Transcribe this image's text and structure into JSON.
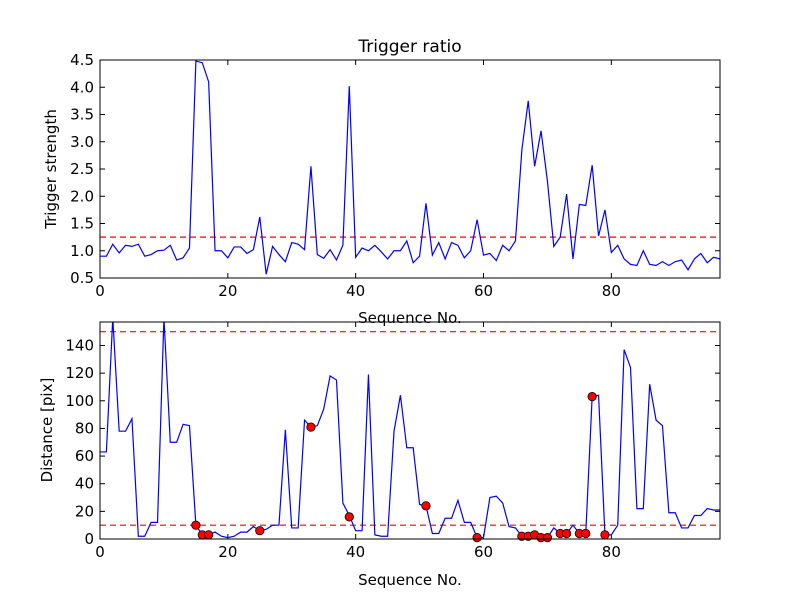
{
  "chart_data": [
    {
      "type": "line",
      "title": "Trigger ratio",
      "xlabel": "Sequence No.",
      "ylabel": "Trigger strength",
      "xlim": [
        0,
        97
      ],
      "ylim": [
        0.5,
        4.5
      ],
      "xticks": [
        "0",
        "20",
        "40",
        "60",
        "80"
      ],
      "yticks": [
        "0.5",
        "1.0",
        "1.5",
        "2.0",
        "2.5",
        "3.0",
        "3.5",
        "4.0",
        "4.5"
      ],
      "grid": false,
      "legend": "none",
      "colors": {
        "line": "#0000ff",
        "threshold": "#ff0000"
      },
      "threshold": 1.25,
      "x": [
        0,
        1,
        2,
        3,
        4,
        5,
        6,
        7,
        8,
        9,
        10,
        11,
        12,
        13,
        14,
        15,
        16,
        17,
        18,
        19,
        20,
        21,
        22,
        23,
        24,
        25,
        26,
        27,
        28,
        29,
        30,
        31,
        32,
        33,
        34,
        35,
        36,
        37,
        38,
        39,
        40,
        41,
        42,
        43,
        44,
        45,
        46,
        47,
        48,
        49,
        50,
        51,
        52,
        53,
        54,
        55,
        56,
        57,
        58,
        59,
        60,
        61,
        62,
        63,
        64,
        65,
        66,
        67,
        68,
        69,
        70,
        71,
        72,
        73,
        74,
        75,
        76,
        77,
        78,
        79,
        80,
        81,
        82,
        83,
        84,
        85,
        86,
        87,
        88,
        89,
        90,
        91,
        92,
        93,
        94,
        95,
        96,
        97
      ],
      "y": [
        0.9,
        0.9,
        1.12,
        0.96,
        1.1,
        1.08,
        1.12,
        0.9,
        0.93,
        1.0,
        1.01,
        1.1,
        0.83,
        0.87,
        1.05,
        4.48,
        4.45,
        4.1,
        1.0,
        1.0,
        0.87,
        1.07,
        1.07,
        0.95,
        1.02,
        1.62,
        0.57,
        1.08,
        0.93,
        0.8,
        1.15,
        1.12,
        1.02,
        2.55,
        0.93,
        0.86,
        1.02,
        0.83,
        1.1,
        4.02,
        0.88,
        1.05,
        1.0,
        1.1,
        0.98,
        0.85,
        1.0,
        1.0,
        1.18,
        0.78,
        0.9,
        1.87,
        0.92,
        1.15,
        0.85,
        1.15,
        1.1,
        0.87,
        1.0,
        1.57,
        0.92,
        0.95,
        0.82,
        1.1,
        1.0,
        1.18,
        2.85,
        3.75,
        2.55,
        3.2,
        2.28,
        1.08,
        1.25,
        2.04,
        0.85,
        1.85,
        1.83,
        2.57,
        1.27,
        1.75,
        0.97,
        1.1,
        0.85,
        0.75,
        0.73,
        1.0,
        0.75,
        0.73,
        0.8,
        0.73,
        0.8,
        0.83,
        0.65,
        0.85,
        0.95,
        0.78,
        0.88,
        0.85
      ]
    },
    {
      "type": "line",
      "xlabel": "Sequence No.",
      "ylabel": "Distance [pix]",
      "xlim": [
        0,
        97
      ],
      "ylim": [
        0,
        157
      ],
      "xticks": [
        "0",
        "20",
        "40",
        "60",
        "80"
      ],
      "yticks": [
        "0",
        "20",
        "40",
        "60",
        "80",
        "100",
        "120",
        "140"
      ],
      "grid": false,
      "legend": "none",
      "colors": {
        "line": "#0000ff",
        "threshold": "#ff0000",
        "marker": "#ff0000"
      },
      "thresholds": [
        150,
        10
      ],
      "x": [
        0,
        1,
        2,
        3,
        4,
        5,
        6,
        7,
        8,
        9,
        10,
        11,
        12,
        13,
        14,
        15,
        16,
        17,
        18,
        19,
        20,
        21,
        22,
        23,
        24,
        25,
        26,
        27,
        28,
        29,
        30,
        31,
        32,
        33,
        34,
        35,
        36,
        37,
        38,
        39,
        40,
        41,
        42,
        43,
        44,
        45,
        46,
        47,
        48,
        49,
        50,
        51,
        52,
        53,
        54,
        55,
        56,
        57,
        58,
        59,
        60,
        61,
        62,
        63,
        64,
        65,
        66,
        67,
        68,
        69,
        70,
        71,
        72,
        73,
        74,
        75,
        76,
        77,
        78,
        79,
        80,
        81,
        82,
        83,
        84,
        85,
        86,
        87,
        88,
        89,
        90,
        91,
        92,
        93,
        94,
        95,
        96,
        97
      ],
      "y": [
        63,
        63,
        160,
        78,
        78,
        87,
        2,
        2,
        12,
        12,
        160,
        70,
        70,
        83,
        82,
        10,
        3,
        3,
        5,
        2,
        1,
        2,
        5,
        5,
        9,
        6,
        7,
        10,
        10,
        79,
        8,
        8,
        86,
        81,
        82,
        94,
        118,
        115,
        26,
        17,
        6,
        6,
        119,
        3,
        2,
        2,
        78,
        104,
        66,
        66,
        25,
        24,
        4,
        4,
        15,
        15,
        28,
        12,
        12,
        1,
        1,
        30,
        31,
        26,
        9,
        8,
        2,
        2,
        4,
        2,
        1,
        8,
        4,
        4,
        10,
        4,
        4,
        103,
        104,
        3,
        3,
        10,
        137,
        124,
        22,
        22,
        112,
        86,
        82,
        19,
        19,
        8,
        8,
        17,
        17,
        22,
        21,
        21
      ],
      "markers": [
        {
          "x": 15,
          "y": 10
        },
        {
          "x": 16,
          "y": 3
        },
        {
          "x": 17,
          "y": 3
        },
        {
          "x": 25,
          "y": 6
        },
        {
          "x": 33,
          "y": 81
        },
        {
          "x": 39,
          "y": 16
        },
        {
          "x": 51,
          "y": 24
        },
        {
          "x": 59,
          "y": 1
        },
        {
          "x": 66,
          "y": 2
        },
        {
          "x": 67,
          "y": 2
        },
        {
          "x": 68,
          "y": 3
        },
        {
          "x": 69,
          "y": 1
        },
        {
          "x": 70,
          "y": 1
        },
        {
          "x": 72,
          "y": 4
        },
        {
          "x": 73,
          "y": 4
        },
        {
          "x": 75,
          "y": 4
        },
        {
          "x": 76,
          "y": 4
        },
        {
          "x": 77,
          "y": 103
        },
        {
          "x": 79,
          "y": 3
        }
      ]
    }
  ]
}
